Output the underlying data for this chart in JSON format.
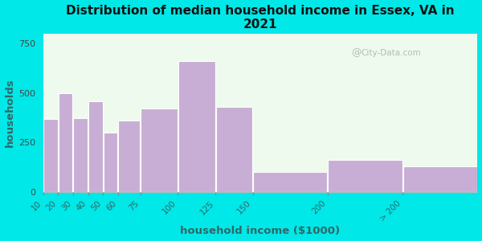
{
  "title": "Distribution of median household income in Essex, VA in\n2021",
  "xlabel": "household income ($1000)",
  "ylabel": "households",
  "bar_labels": [
    "10",
    "20",
    "30",
    "40",
    "50",
    "60",
    "75",
    "100",
    "125",
    "150",
    "200",
    "> 200"
  ],
  "bar_values": [
    370,
    500,
    375,
    460,
    300,
    360,
    420,
    660,
    430,
    100,
    160,
    130
  ],
  "bar_lefts": [
    10,
    20,
    30,
    40,
    50,
    60,
    75,
    100,
    125,
    150,
    200,
    250
  ],
  "bar_widths": [
    10,
    10,
    10,
    10,
    10,
    15,
    25,
    25,
    25,
    50,
    50,
    50
  ],
  "bar_color": "#c8aed4",
  "bar_edgecolor": "#ffffff",
  "bg_color": "#00e8e8",
  "plot_bg_color": "#edfaed",
  "ylim": [
    0,
    800
  ],
  "yticks": [
    0,
    250,
    500,
    750
  ],
  "tick_positions": [
    10,
    20,
    30,
    40,
    50,
    60,
    75,
    100,
    125,
    150,
    200,
    250
  ],
  "tick_labels": [
    "10",
    "20",
    "30",
    "40",
    "50",
    "60",
    "75",
    "100",
    "125",
    "150",
    "200",
    "> 200"
  ],
  "watermark": "City-Data.com",
  "title_fontsize": 11,
  "axis_label_fontsize": 9.5
}
